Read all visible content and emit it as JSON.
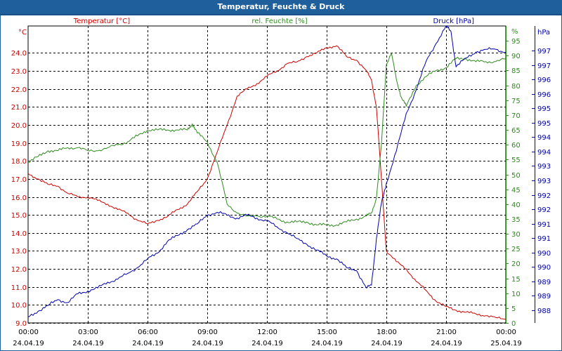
{
  "window": {
    "title": "Temperatur, Feuchte & Druck"
  },
  "colors": {
    "temperature": "#cc0000",
    "humidity": "#2e8b1e",
    "pressure": "#0000aa",
    "grid": "#000000"
  },
  "chart_data": {
    "type": "line",
    "title": "Temperatur, Feuchte & Druck",
    "grid": true,
    "x_ticks": [
      {
        "time": "00:00",
        "date": "24.04.19"
      },
      {
        "time": "03:00",
        "date": "24.04.19"
      },
      {
        "time": "06:00",
        "date": "24.04.19"
      },
      {
        "time": "09:00",
        "date": "24.04.19"
      },
      {
        "time": "12:00",
        "date": "24.04.19"
      },
      {
        "time": "15:00",
        "date": "24.04.19"
      },
      {
        "time": "18:00",
        "date": "24.04.19"
      },
      {
        "time": "21:00",
        "date": "24.04.19"
      },
      {
        "time": "00:00",
        "date": "25.04.19"
      }
    ],
    "xlim": [
      0,
      24
    ],
    "axes": {
      "temperature": {
        "label": "Temperatur [°C]",
        "unit": "°C",
        "ylim": [
          9.0,
          25.5
        ],
        "ticks": [
          "9.0",
          "10.0",
          "11.0",
          "12.0",
          "13.0",
          "14.0",
          "15.0",
          "16.0",
          "17.0",
          "18.0",
          "19.0",
          "20.0",
          "21.0",
          "22.0",
          "23.0",
          "24.0"
        ]
      },
      "humidity": {
        "label": "rel. Feuchte [%]",
        "unit": "%",
        "ylim": [
          0,
          100
        ],
        "ticks": [
          "0",
          "5",
          "10",
          "15",
          "20",
          "25",
          "30",
          "35",
          "40",
          "45",
          "50",
          "55",
          "60",
          "65",
          "70",
          "75",
          "80",
          "85",
          "90",
          "95"
        ]
      },
      "pressure": {
        "label": "Druck [hPa]",
        "unit": "hPa",
        "ylim": [
          987.6,
          997.8
        ],
        "ticks": [
          "988",
          "989",
          "989",
          "990",
          "990",
          "991",
          "991",
          "992",
          "992",
          "993",
          "993",
          "994",
          "994",
          "995",
          "995",
          "996",
          "996",
          "997",
          "997"
        ]
      }
    },
    "series": [
      {
        "name": "Temperatur [°C]",
        "axis": "temperature",
        "x": [
          0,
          0.5,
          1,
          1.5,
          2,
          2.5,
          3,
          3.5,
          4,
          4.5,
          5,
          5.5,
          6,
          6.5,
          7,
          7.5,
          8,
          8.5,
          9,
          9.5,
          10,
          10.5,
          11,
          11.5,
          12,
          12.5,
          13,
          13.5,
          14,
          14.5,
          15,
          15.5,
          16,
          16.5,
          17,
          17.25,
          17.5,
          17.75,
          18,
          18.5,
          19,
          19.5,
          20,
          20.5,
          21,
          21.5,
          22,
          22.5,
          23,
          23.5,
          24
        ],
        "values": [
          17.3,
          17.0,
          16.7,
          16.6,
          16.2,
          16.0,
          16.0,
          15.8,
          15.6,
          15.3,
          15.1,
          14.7,
          14.5,
          14.7,
          14.9,
          15.3,
          15.6,
          16.3,
          17.0,
          18.5,
          20.0,
          21.6,
          22.0,
          22.3,
          22.7,
          23.0,
          23.4,
          23.5,
          23.8,
          24.0,
          24.3,
          24.4,
          23.8,
          23.6,
          23.0,
          22.5,
          21.0,
          17.0,
          13.0,
          12.4,
          12.0,
          11.3,
          10.8,
          10.2,
          9.9,
          9.7,
          9.6,
          9.5,
          9.4,
          9.3,
          9.2
        ]
      },
      {
        "name": "rel. Feuchte [%]",
        "axis": "humidity",
        "x": [
          0,
          0.5,
          1,
          1.5,
          2,
          2.5,
          3,
          3.5,
          4,
          4.5,
          5,
          5.5,
          6,
          6.5,
          7,
          7.5,
          8,
          8.25,
          8.5,
          9,
          9.5,
          10,
          10.5,
          11,
          11.5,
          12,
          12.5,
          13,
          13.5,
          14,
          14.5,
          15,
          15.5,
          16,
          16.5,
          17,
          17.25,
          17.5,
          17.75,
          18,
          18.25,
          18.5,
          18.75,
          19,
          19.5,
          20,
          20.5,
          21,
          21.5,
          22,
          22.5,
          23,
          23.5,
          24
        ],
        "values": [
          54,
          56,
          58,
          58,
          59,
          59,
          58,
          58,
          59,
          60,
          61,
          63,
          65,
          65,
          65,
          65,
          65,
          67,
          64,
          61,
          54,
          40,
          37,
          36,
          36,
          36,
          35,
          34,
          34,
          34,
          33,
          33,
          33,
          34,
          35,
          36,
          37,
          42,
          60,
          87,
          91,
          82,
          76,
          73,
          80,
          83,
          85,
          86,
          89,
          89,
          88,
          88,
          88,
          89
        ]
      },
      {
        "name": "Druck [hPa]",
        "axis": "pressure",
        "x": [
          0,
          0.5,
          1,
          1.5,
          2,
          2.5,
          3,
          3.5,
          4,
          4.5,
          5,
          5.5,
          6,
          6.5,
          7,
          7.5,
          8,
          8.5,
          9,
          9.5,
          10,
          10.5,
          11,
          11.5,
          12,
          12.5,
          13,
          13.5,
          14,
          14.5,
          15,
          15.5,
          16,
          16.5,
          17,
          17.25,
          17.5,
          17.75,
          18,
          18.5,
          19,
          19.5,
          20,
          20.5,
          21,
          21.25,
          21.5,
          22,
          22.5,
          23,
          23.5,
          24
        ],
        "values": [
          987.8,
          988.0,
          988.2,
          988.4,
          988.3,
          988.6,
          988.7,
          988.8,
          989.0,
          989.1,
          989.3,
          989.5,
          989.8,
          990.0,
          990.4,
          990.6,
          990.8,
          991.0,
          991.3,
          991.4,
          991.3,
          991.2,
          991.3,
          991.2,
          991.1,
          990.9,
          990.7,
          990.5,
          990.3,
          990.1,
          989.9,
          989.8,
          989.5,
          989.4,
          988.8,
          988.9,
          990.5,
          991.7,
          992.4,
          993.5,
          994.8,
          995.6,
          996.6,
          997.2,
          997.8,
          997.6,
          996.4,
          996.7,
          996.9,
          997.0,
          997.0,
          996.9
        ]
      }
    ]
  }
}
